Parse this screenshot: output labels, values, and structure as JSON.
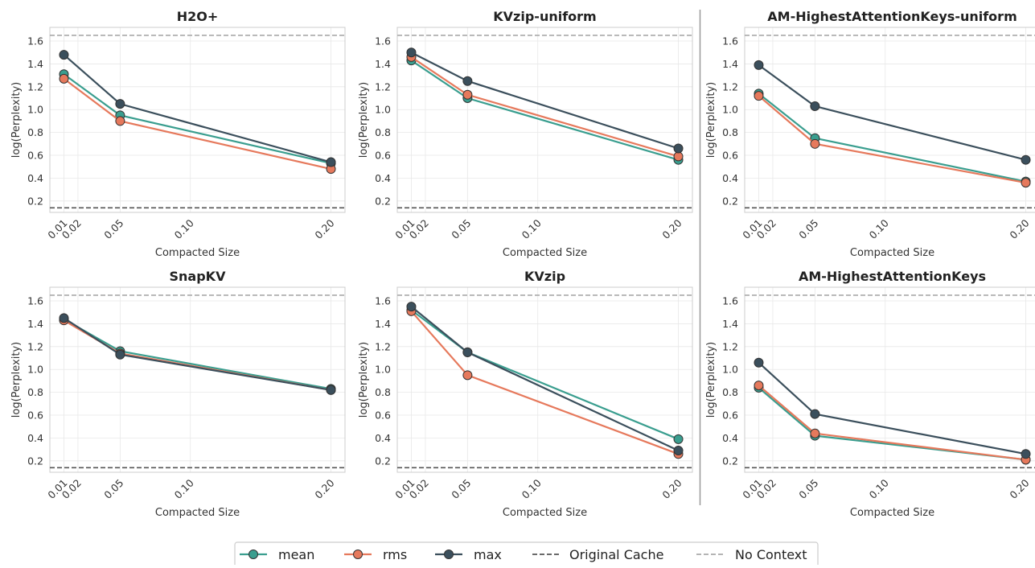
{
  "legend": {
    "mean": "mean",
    "rms": "rms",
    "max": "max",
    "original": "Original Cache",
    "nocontext": "No Context"
  },
  "colors": {
    "mean": "#3a9e8f",
    "rms": "#e6795c",
    "max": "#3b4f5c",
    "original": "#555555",
    "nocontext": "#aaaaaa",
    "grid": "#e8e8e8",
    "frame": "#cccccc"
  },
  "chart_data": [
    {
      "type": "line",
      "title": "H2O+",
      "xlabel": "Compacted Size",
      "ylabel": "log(Perplexity)",
      "x": [
        0.01,
        0.05,
        0.2
      ],
      "xticks": [
        0.01,
        0.02,
        0.05,
        0.1,
        0.2
      ],
      "xtick_labels": [
        "0.01",
        "0.02",
        "0.05",
        "0.10",
        "0.20"
      ],
      "yticks": [
        0.2,
        0.4,
        0.6,
        0.8,
        1.0,
        1.2,
        1.4,
        1.6
      ],
      "ylim": [
        0.1,
        1.72
      ],
      "reference_lines": {
        "original_cache": 0.14,
        "no_context": 1.65
      },
      "series": [
        {
          "name": "mean",
          "values": [
            1.31,
            0.95,
            0.53
          ]
        },
        {
          "name": "rms",
          "values": [
            1.27,
            0.9,
            0.48
          ]
        },
        {
          "name": "max",
          "values": [
            1.48,
            1.05,
            0.54
          ]
        }
      ]
    },
    {
      "type": "line",
      "title": "KVzip-uniform",
      "xlabel": "Compacted Size",
      "ylabel": "log(Perplexity)",
      "x": [
        0.01,
        0.05,
        0.2
      ],
      "xticks": [
        0.01,
        0.02,
        0.05,
        0.1,
        0.2
      ],
      "xtick_labels": [
        "0.01",
        "0.02",
        "0.05",
        "0.10",
        "0.20"
      ],
      "yticks": [
        0.2,
        0.4,
        0.6,
        0.8,
        1.0,
        1.2,
        1.4,
        1.6
      ],
      "ylim": [
        0.1,
        1.72
      ],
      "reference_lines": {
        "original_cache": 0.14,
        "no_context": 1.65
      },
      "series": [
        {
          "name": "mean",
          "values": [
            1.43,
            1.1,
            0.56
          ]
        },
        {
          "name": "rms",
          "values": [
            1.46,
            1.13,
            0.59
          ]
        },
        {
          "name": "max",
          "values": [
            1.5,
            1.25,
            0.66
          ]
        }
      ]
    },
    {
      "type": "line",
      "title": "AM-HighestAttentionKeys-uniform",
      "xlabel": "Compacted Size",
      "ylabel": "log(Perplexity)",
      "x": [
        0.01,
        0.05,
        0.2
      ],
      "xticks": [
        0.01,
        0.02,
        0.05,
        0.1,
        0.2
      ],
      "xtick_labels": [
        "0.01",
        "0.02",
        "0.05",
        "0.10",
        "0.20"
      ],
      "yticks": [
        0.2,
        0.4,
        0.6,
        0.8,
        1.0,
        1.2,
        1.4,
        1.6
      ],
      "ylim": [
        0.1,
        1.72
      ],
      "reference_lines": {
        "original_cache": 0.14,
        "no_context": 1.65
      },
      "series": [
        {
          "name": "mean",
          "values": [
            1.14,
            0.75,
            0.37
          ]
        },
        {
          "name": "rms",
          "values": [
            1.12,
            0.7,
            0.36
          ]
        },
        {
          "name": "max",
          "values": [
            1.39,
            1.03,
            0.56
          ]
        }
      ]
    },
    {
      "type": "line",
      "title": "SnapKV",
      "xlabel": "Compacted Size",
      "ylabel": "log(Perplexity)",
      "x": [
        0.01,
        0.05,
        0.2
      ],
      "xticks": [
        0.01,
        0.02,
        0.05,
        0.1,
        0.2
      ],
      "xtick_labels": [
        "0.01",
        "0.02",
        "0.05",
        "0.10",
        "0.20"
      ],
      "yticks": [
        0.2,
        0.4,
        0.6,
        0.8,
        1.0,
        1.2,
        1.4,
        1.6
      ],
      "ylim": [
        0.1,
        1.72
      ],
      "reference_lines": {
        "original_cache": 0.14,
        "no_context": 1.65
      },
      "series": [
        {
          "name": "mean",
          "values": [
            1.44,
            1.16,
            0.83
          ]
        },
        {
          "name": "rms",
          "values": [
            1.43,
            1.14,
            0.82
          ]
        },
        {
          "name": "max",
          "values": [
            1.45,
            1.13,
            0.82
          ]
        }
      ]
    },
    {
      "type": "line",
      "title": "KVzip",
      "xlabel": "Compacted Size",
      "ylabel": "log(Perplexity)",
      "x": [
        0.01,
        0.05,
        0.2
      ],
      "xticks": [
        0.01,
        0.02,
        0.05,
        0.1,
        0.2
      ],
      "xtick_labels": [
        "0.01",
        "0.02",
        "0.05",
        "0.10",
        "0.20"
      ],
      "yticks": [
        0.2,
        0.4,
        0.6,
        0.8,
        1.0,
        1.2,
        1.4,
        1.6
      ],
      "ylim": [
        0.1,
        1.72
      ],
      "reference_lines": {
        "original_cache": 0.14,
        "no_context": 1.65
      },
      "series": [
        {
          "name": "mean",
          "values": [
            1.52,
            1.15,
            0.39
          ]
        },
        {
          "name": "rms",
          "values": [
            1.51,
            0.95,
            0.26
          ]
        },
        {
          "name": "max",
          "values": [
            1.55,
            1.15,
            0.29
          ]
        }
      ]
    },
    {
      "type": "line",
      "title": "AM-HighestAttentionKeys",
      "xlabel": "Compacted Size",
      "ylabel": "log(Perplexity)",
      "x": [
        0.01,
        0.05,
        0.2
      ],
      "xticks": [
        0.01,
        0.02,
        0.05,
        0.1,
        0.2
      ],
      "xtick_labels": [
        "0.01",
        "0.02",
        "0.05",
        "0.10",
        "0.20"
      ],
      "yticks": [
        0.2,
        0.4,
        0.6,
        0.8,
        1.0,
        1.2,
        1.4,
        1.6
      ],
      "ylim": [
        0.1,
        1.72
      ],
      "reference_lines": {
        "original_cache": 0.14,
        "no_context": 1.65
      },
      "series": [
        {
          "name": "mean",
          "values": [
            0.84,
            0.42,
            0.21
          ]
        },
        {
          "name": "rms",
          "values": [
            0.86,
            0.44,
            0.21
          ]
        },
        {
          "name": "max",
          "values": [
            1.06,
            0.61,
            0.26
          ]
        }
      ]
    }
  ]
}
